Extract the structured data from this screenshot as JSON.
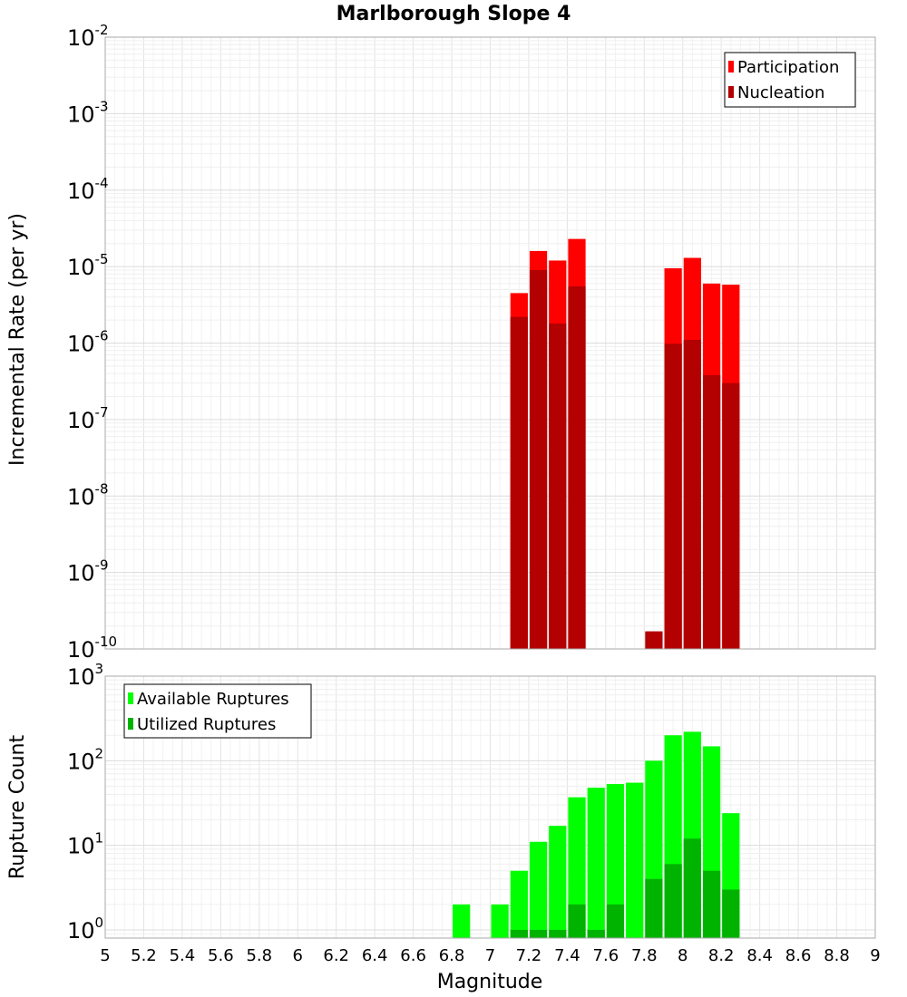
{
  "chart_data": [
    {
      "type": "bar",
      "title": "Marlborough Slope 4",
      "ylabel": "Incremental Rate (per yr)",
      "yscale": "log",
      "ylim": [
        1e-10,
        0.01
      ],
      "xlim": [
        5,
        9
      ],
      "grid": true,
      "legend_placement": "top-right",
      "bar_width": 0.1,
      "series": [
        {
          "name": "Participation",
          "color": "#ff0000",
          "points": [
            {
              "x": 7.15,
              "y": 4.5e-06
            },
            {
              "x": 7.25,
              "y": 1.6e-05
            },
            {
              "x": 7.35,
              "y": 1.2e-05
            },
            {
              "x": 7.45,
              "y": 2.3e-05
            },
            {
              "x": 7.95,
              "y": 9.5e-06
            },
            {
              "x": 8.05,
              "y": 1.3e-05
            },
            {
              "x": 8.15,
              "y": 6e-06
            },
            {
              "x": 8.25,
              "y": 5.8e-06
            }
          ]
        },
        {
          "name": "Nucleation",
          "color": "#b30000",
          "points": [
            {
              "x": 7.15,
              "y": 2.2e-06
            },
            {
              "x": 7.25,
              "y": 9e-06
            },
            {
              "x": 7.35,
              "y": 1.8e-06
            },
            {
              "x": 7.45,
              "y": 5.5e-06
            },
            {
              "x": 7.85,
              "y": 1.7e-10
            },
            {
              "x": 7.95,
              "y": 9.8e-07
            },
            {
              "x": 8.05,
              "y": 1.1e-06
            },
            {
              "x": 8.15,
              "y": 3.8e-07
            },
            {
              "x": 8.25,
              "y": 3e-07
            }
          ]
        }
      ]
    },
    {
      "type": "bar",
      "xlabel": "Magnitude",
      "ylabel": "Rupture Count",
      "yscale": "log",
      "ylim": [
        0.8,
        1000
      ],
      "xlim": [
        5,
        9
      ],
      "grid": true,
      "legend_placement": "top-left",
      "bar_width": 0.1,
      "series": [
        {
          "name": "Available Ruptures",
          "color": "#00ff00",
          "points": [
            {
              "x": 6.85,
              "y": 2
            },
            {
              "x": 7.05,
              "y": 2
            },
            {
              "x": 7.15,
              "y": 5
            },
            {
              "x": 7.25,
              "y": 11
            },
            {
              "x": 7.35,
              "y": 17
            },
            {
              "x": 7.45,
              "y": 37
            },
            {
              "x": 7.55,
              "y": 48
            },
            {
              "x": 7.65,
              "y": 53
            },
            {
              "x": 7.75,
              "y": 55
            },
            {
              "x": 7.85,
              "y": 100
            },
            {
              "x": 7.95,
              "y": 200
            },
            {
              "x": 8.05,
              "y": 220
            },
            {
              "x": 8.15,
              "y": 148
            },
            {
              "x": 8.25,
              "y": 24
            }
          ]
        },
        {
          "name": "Utilized Ruptures",
          "color": "#00b300",
          "points": [
            {
              "x": 7.15,
              "y": 1
            },
            {
              "x": 7.25,
              "y": 1
            },
            {
              "x": 7.35,
              "y": 1
            },
            {
              "x": 7.45,
              "y": 2
            },
            {
              "x": 7.55,
              "y": 1
            },
            {
              "x": 7.65,
              "y": 2
            },
            {
              "x": 7.85,
              "y": 4
            },
            {
              "x": 7.95,
              "y": 6
            },
            {
              "x": 8.05,
              "y": 12
            },
            {
              "x": 8.15,
              "y": 5
            },
            {
              "x": 8.25,
              "y": 3
            }
          ]
        }
      ]
    }
  ],
  "top_yticks": [
    {
      "base": "10",
      "exp": "-2",
      "v": 0.01
    },
    {
      "base": "10",
      "exp": "-3",
      "v": 0.001
    },
    {
      "base": "10",
      "exp": "-4",
      "v": 0.0001
    },
    {
      "base": "10",
      "exp": "-5",
      "v": 1e-05
    },
    {
      "base": "10",
      "exp": "-6",
      "v": 1e-06
    },
    {
      "base": "10",
      "exp": "-7",
      "v": 1e-07
    },
    {
      "base": "10",
      "exp": "-8",
      "v": 1e-08
    },
    {
      "base": "10",
      "exp": "-9",
      "v": 1e-09
    },
    {
      "base": "10",
      "exp": "-10",
      "v": 1e-10
    }
  ],
  "bottom_yticks": [
    {
      "base": "10",
      "exp": "3",
      "v": 1000
    },
    {
      "base": "10",
      "exp": "2",
      "v": 100
    },
    {
      "base": "10",
      "exp": "1",
      "v": 10
    },
    {
      "base": "10",
      "exp": "0",
      "v": 1
    }
  ],
  "xticks": [
    "5",
    "5.2",
    "5.4",
    "5.6",
    "5.8",
    "6",
    "6.2",
    "6.4",
    "6.6",
    "6.8",
    "7",
    "7.2",
    "7.4",
    "7.6",
    "7.8",
    "8",
    "8.2",
    "8.4",
    "8.6",
    "8.8",
    "9"
  ]
}
